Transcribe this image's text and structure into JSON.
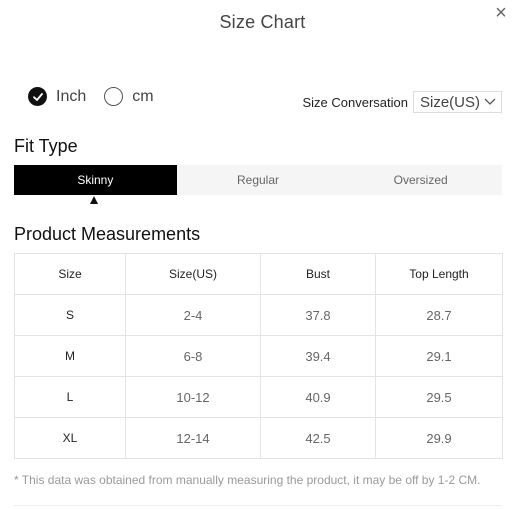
{
  "dialog": {
    "title": "Size Chart",
    "close_label": "×"
  },
  "units": {
    "options": [
      {
        "label": "Inch",
        "selected": true
      },
      {
        "label": "cm",
        "selected": false
      }
    ]
  },
  "conversation": {
    "label": "Size Conversation",
    "selected": "Size(US)"
  },
  "fit": {
    "title": "Fit Type",
    "tabs": [
      "Skinny",
      "Regular",
      "Oversized"
    ],
    "active_tab": "Skinny"
  },
  "measurements": {
    "title": "Product Measurements",
    "headers": [
      "Size",
      "Size(US)",
      "Bust",
      "Top Length"
    ],
    "rows": [
      [
        "S",
        "2-4",
        "37.8",
        "28.7"
      ],
      [
        "M",
        "6-8",
        "39.4",
        "29.1"
      ],
      [
        "L",
        "10-12",
        "40.9",
        "29.5"
      ],
      [
        "XL",
        "12-14",
        "42.5",
        "29.9"
      ]
    ]
  },
  "note": "* This data was obtained from manually measuring the product, it may be off by 1-2 CM.",
  "colors": {
    "active_tab_bg": "#000000",
    "tab_bar_bg": "#f5f5f5",
    "border": "#e3e3e3"
  }
}
